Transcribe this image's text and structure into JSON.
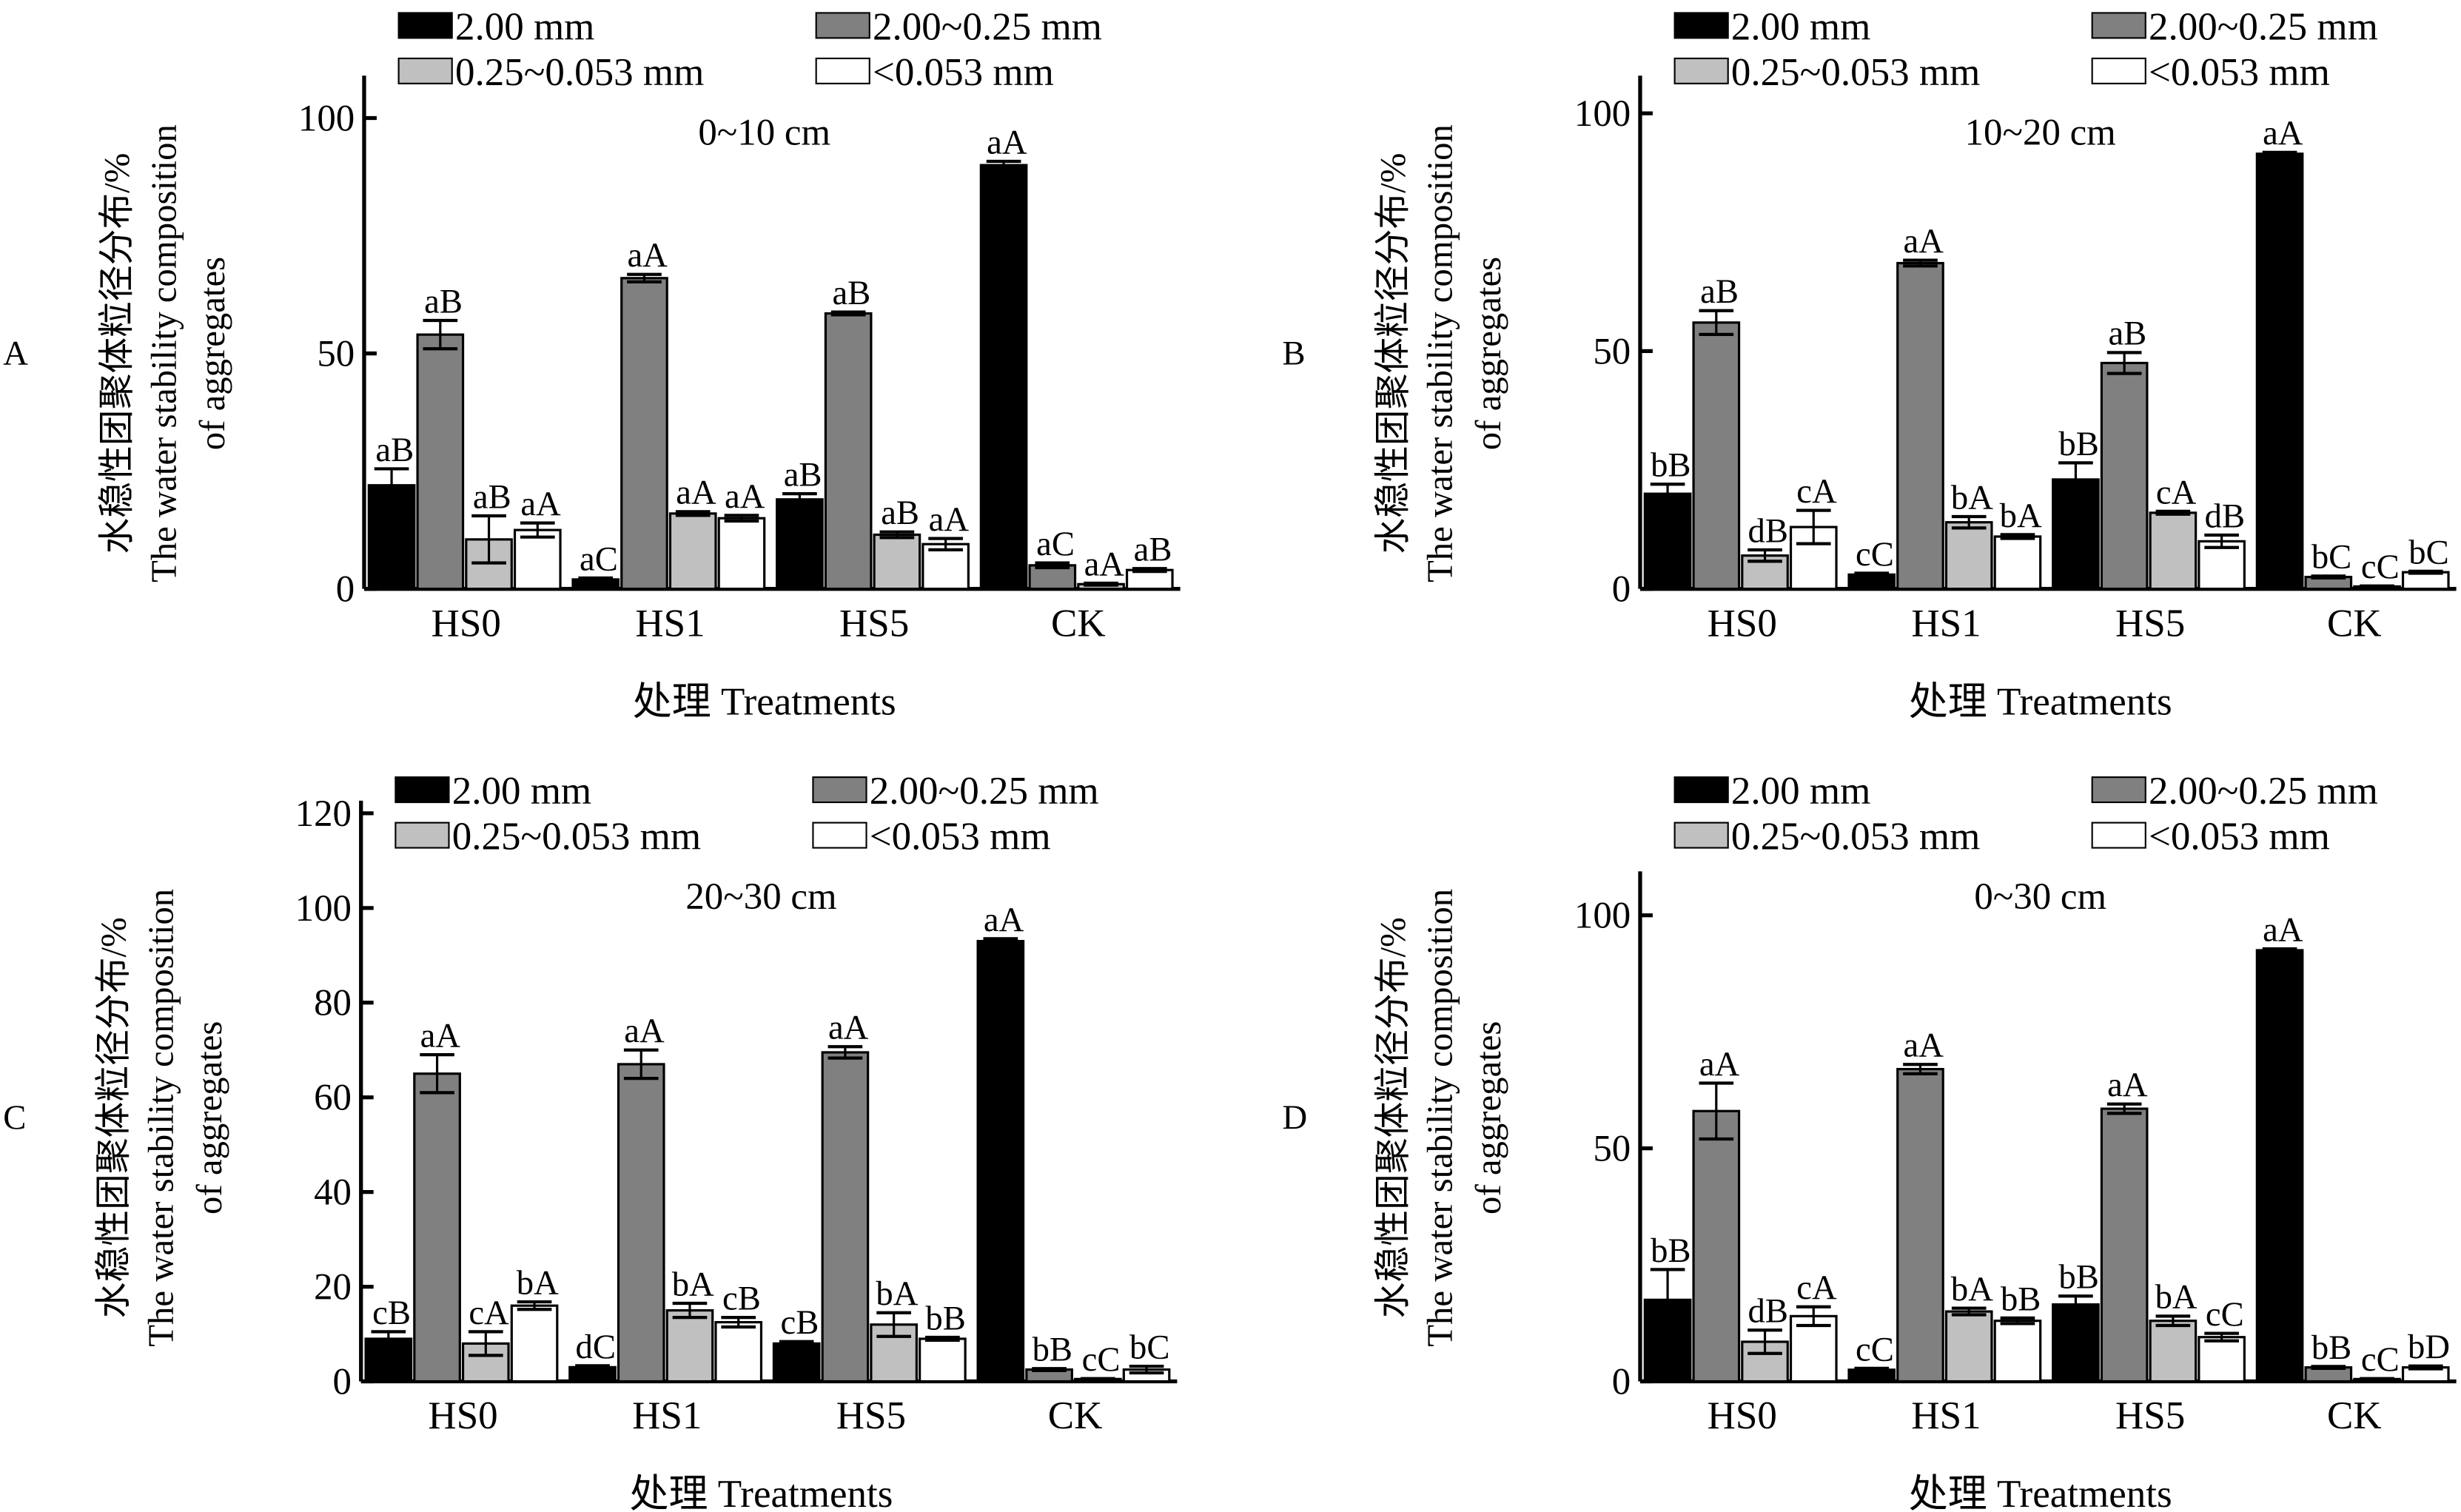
{
  "legend": [
    {
      "label": "2.00 mm",
      "color": "#000000"
    },
    {
      "label": "2.00~0.25 mm",
      "color": "#808080"
    },
    {
      "label": "0.25~0.053 mm",
      "color": "#c0c0c0"
    },
    {
      "label": "<0.053 mm",
      "color": "#ffffff"
    }
  ],
  "ylabel_cn": "水稳性团聚体粒径分布/%",
  "ylabel_en1": "The water stability composition",
  "ylabel_en2": "of aggregates",
  "xlabel": "处理 Treatments",
  "chart_data": [
    {
      "type": "bar",
      "panel": "A",
      "title": "0~10 cm",
      "categories": [
        "HS0",
        "HS1",
        "HS5",
        "CK"
      ],
      "ylim": [
        0,
        100
      ],
      "yticks": [
        0,
        50,
        100
      ],
      "series": [
        {
          "name": "2.00 mm",
          "values": [
            22,
            2,
            19,
            90
          ],
          "errors": [
            3.5,
            0.3,
            1.2,
            0.8
          ],
          "labels": [
            "aB",
            "aC",
            "aB",
            "aA"
          ]
        },
        {
          "name": "2.00~0.25 mm",
          "values": [
            54,
            66,
            58.5,
            5
          ],
          "errors": [
            3,
            0.8,
            0.3,
            0.5
          ],
          "labels": [
            "aB",
            "aA",
            "aB",
            "aC"
          ]
        },
        {
          "name": "0.25~0.053 mm",
          "values": [
            10.5,
            16,
            11.5,
            1
          ],
          "errors": [
            5,
            0.4,
            0.6,
            0.2
          ],
          "labels": [
            "aB",
            "aA",
            "aB",
            "aA"
          ]
        },
        {
          "name": "<0.053 mm",
          "values": [
            12.5,
            15,
            9.5,
            4
          ],
          "errors": [
            1.5,
            0.6,
            1.2,
            0.3
          ],
          "labels": [
            "aA",
            "aA",
            "aA",
            "aB"
          ]
        }
      ]
    },
    {
      "type": "bar",
      "panel": "B",
      "title": "10~20 cm",
      "categories": [
        "HS0",
        "HS1",
        "HS5",
        "CK"
      ],
      "ylim": [
        0,
        100
      ],
      "yticks": [
        0,
        50,
        100
      ],
      "series": [
        {
          "name": "2.00 mm",
          "values": [
            20,
            3,
            23,
            91.5
          ],
          "errors": [
            2,
            0.3,
            3.5,
            0.3
          ],
          "labels": [
            "bB",
            "cC",
            "bB",
            "aA"
          ]
        },
        {
          "name": "2.00~0.25 mm",
          "values": [
            56,
            68.5,
            47.5,
            2.5
          ],
          "errors": [
            2.5,
            0.6,
            2.2,
            0.2
          ],
          "labels": [
            "aB",
            "aA",
            "aB",
            "bC"
          ]
        },
        {
          "name": "0.25~0.053 mm",
          "values": [
            7,
            14,
            16,
            0.5
          ],
          "errors": [
            1.2,
            1.2,
            0.3,
            0.1
          ],
          "labels": [
            "dB",
            "bA",
            "cA",
            "cC"
          ]
        },
        {
          "name": "<0.053 mm",
          "values": [
            13,
            11,
            10,
            3.5
          ],
          "errors": [
            3.5,
            0.4,
            1.3,
            0.2
          ],
          "labels": [
            "cA",
            "bA",
            "dB",
            "bC"
          ]
        }
      ]
    },
    {
      "type": "bar",
      "panel": "C",
      "title": "20~30 cm",
      "categories": [
        "HS0",
        "HS1",
        "HS5",
        "CK"
      ],
      "ylim": [
        0,
        120
      ],
      "yticks": [
        0,
        20,
        40,
        60,
        80,
        100,
        120
      ],
      "series": [
        {
          "name": "2.00 mm",
          "values": [
            9,
            3,
            8,
            93
          ],
          "errors": [
            1.5,
            0.3,
            0.4,
            0.5
          ],
          "labels": [
            "cB",
            "dC",
            "cB",
            "aA"
          ]
        },
        {
          "name": "2.00~0.25 mm",
          "values": [
            65,
            67,
            69.5,
            2.5
          ],
          "errors": [
            4,
            3,
            1.2,
            0.2
          ],
          "labels": [
            "aA",
            "aA",
            "aA",
            "bB"
          ]
        },
        {
          "name": "0.25~0.053 mm",
          "values": [
            8,
            15,
            12,
            0.5
          ],
          "errors": [
            2.5,
            1.5,
            2.5,
            0.1
          ],
          "labels": [
            "cA",
            "bA",
            "bA",
            "cC"
          ]
        },
        {
          "name": "<0.053 mm",
          "values": [
            16,
            12.5,
            9,
            2.5
          ],
          "errors": [
            0.8,
            1,
            0.3,
            0.7
          ],
          "labels": [
            "bA",
            "cB",
            "bB",
            "bC"
          ]
        }
      ]
    },
    {
      "type": "bar",
      "panel": "D",
      "title": "0~30 cm",
      "categories": [
        "HS0",
        "HS1",
        "HS5",
        "CK"
      ],
      "ylim": [
        0,
        100
      ],
      "yticks": [
        0,
        50,
        100
      ],
      "series": [
        {
          "name": "2.00 mm",
          "values": [
            17.5,
            2.5,
            16.5,
            92.5
          ],
          "errors": [
            6.5,
            0.3,
            1.8,
            0.3
          ],
          "labels": [
            "bB",
            "cC",
            "bB",
            "aA"
          ]
        },
        {
          "name": "2.00~0.25 mm",
          "values": [
            58,
            67,
            58.5,
            3
          ],
          "errors": [
            6,
            1,
            1,
            0.2
          ],
          "labels": [
            "aA",
            "aA",
            "aA",
            "bB"
          ]
        },
        {
          "name": "0.25~0.053 mm",
          "values": [
            8.5,
            15,
            13,
            0.5
          ],
          "errors": [
            2.5,
            0.7,
            1,
            0.1
          ],
          "labels": [
            "dB",
            "bA",
            "bA",
            "cC"
          ]
        },
        {
          "name": "<0.053 mm",
          "values": [
            14,
            13,
            9.5,
            3
          ],
          "errors": [
            2,
            0.6,
            0.8,
            0.3
          ],
          "labels": [
            "cA",
            "bB",
            "cC",
            "bD"
          ]
        }
      ]
    }
  ]
}
